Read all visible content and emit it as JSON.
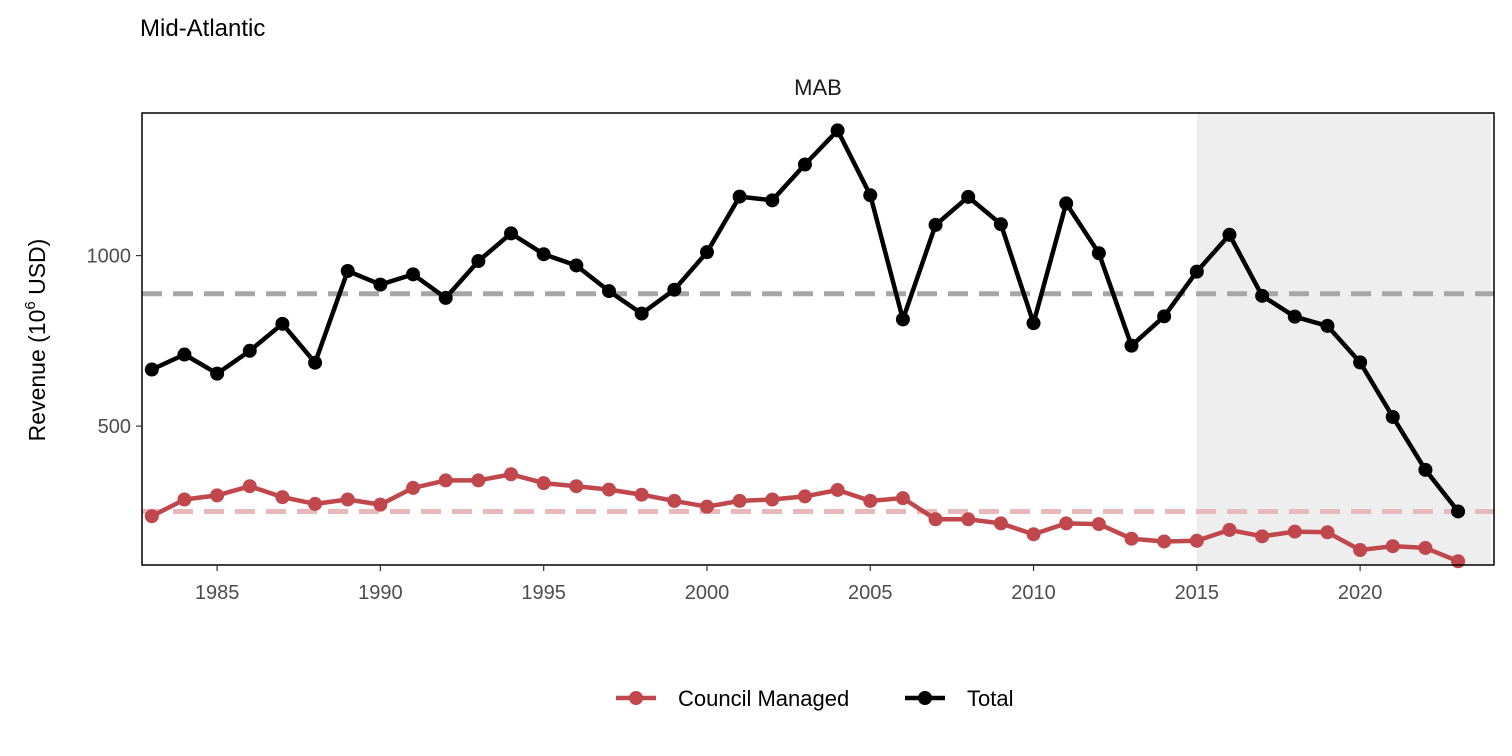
{
  "chart_data": {
    "type": "line",
    "title": "Mid-Atlantic",
    "facet_label": "MAB",
    "ylabel": {
      "main": "Revenue (10",
      "sup": "6",
      "unit": " USD)"
    },
    "xlabel": "",
    "xlim": [
      1982.7,
      2024.1
    ],
    "ylim": [
      93,
      1418
    ],
    "x_ticks": [
      1985,
      1990,
      1995,
      2000,
      2005,
      2010,
      2015,
      2020
    ],
    "y_ticks": [
      500,
      1000
    ],
    "shaded_region": {
      "x_start": 2015,
      "x_end": 2024,
      "color": "#eeeeee"
    },
    "grid": false,
    "legend": "bottom",
    "x": [
      1983,
      1984,
      1985,
      1986,
      1987,
      1988,
      1989,
      1990,
      1991,
      1992,
      1993,
      1994,
      1995,
      1996,
      1997,
      1998,
      1999,
      2000,
      2001,
      2002,
      2003,
      2004,
      2005,
      2006,
      2007,
      2008,
      2009,
      2010,
      2011,
      2012,
      2013,
      2014,
      2015,
      2016,
      2017,
      2018,
      2019,
      2020,
      2021,
      2022,
      2023
    ],
    "series": [
      {
        "name": "Council Managed",
        "color": "#c0474c",
        "mean_line": 250,
        "mean_color": "#e8b9ba",
        "values": [
          236,
          285,
          297,
          324,
          292,
          272,
          285,
          270,
          319,
          341,
          341,
          359,
          333,
          324,
          314,
          299,
          281,
          264,
          281,
          285,
          294,
          313,
          281,
          289,
          227,
          227,
          215,
          183,
          215,
          213,
          170,
          162,
          164,
          196,
          177,
          191,
          189,
          137,
          148,
          143,
          104
        ]
      },
      {
        "name": "Total",
        "color": "#000000",
        "mean_line": 888,
        "mean_color": "#a6a6a6",
        "values": [
          666,
          710,
          654,
          721,
          800,
          686,
          955,
          915,
          945,
          876,
          984,
          1065,
          1004,
          971,
          896,
          830,
          900,
          1010,
          1173,
          1162,
          1267,
          1367,
          1177,
          813,
          1090,
          1172,
          1092,
          802,
          1153,
          1007,
          736,
          822,
          953,
          1061,
          882,
          821,
          794,
          687,
          527,
          372,
          250
        ]
      }
    ]
  }
}
